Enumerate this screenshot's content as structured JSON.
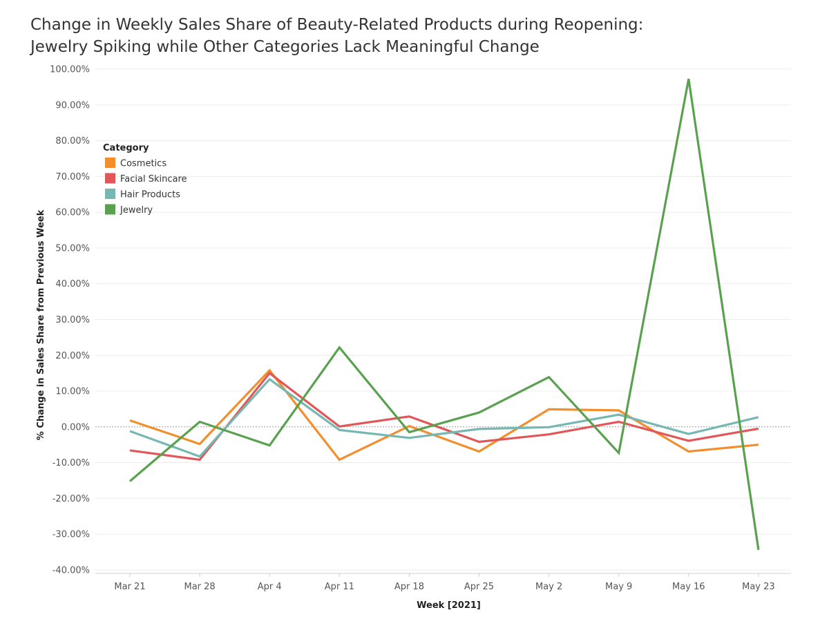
{
  "title_lines": [
    "Change in Weekly Sales Share of Beauty-Related Products during Reopening:",
    "Jewelry Spiking while Other Categories Lack Meaningful Change"
  ],
  "chart_data": {
    "type": "line",
    "xlabel": "Week [2021]",
    "ylabel": "% Change in Sales Share from Previous Week",
    "categories": [
      "Mar 21",
      "Mar 28",
      "Apr 4",
      "Apr 11",
      "Apr 18",
      "Apr 25",
      "May 2",
      "May 9",
      "May 16",
      "May 23"
    ],
    "ylim": [
      -41,
      101
    ],
    "yticks": [
      -40,
      -30,
      -20,
      -10,
      0,
      10,
      20,
      30,
      40,
      50,
      60,
      70,
      80,
      90,
      100
    ],
    "ytick_labels": [
      "-40.00%",
      "-30.00%",
      "-20.00%",
      "-10.00%",
      "0.00%",
      "10.00%",
      "20.00%",
      "30.00%",
      "40.00%",
      "50.00%",
      "60.00%",
      "70.00%",
      "80.00%",
      "90.00%",
      "100.00%"
    ],
    "grid": true,
    "zero_line": "dotted",
    "legend": {
      "title": "Category",
      "position": "top-left"
    },
    "series": [
      {
        "name": "Cosmetics",
        "color": "#F28E2B",
        "values": [
          1.8,
          -4.8,
          15.8,
          -9.2,
          0.2,
          -6.9,
          4.9,
          4.6,
          -6.9,
          -5.0
        ]
      },
      {
        "name": "Facial Skincare",
        "color": "#E15759",
        "values": [
          -6.6,
          -9.2,
          15.0,
          0.1,
          2.9,
          -4.2,
          -2.1,
          1.4,
          -3.9,
          -0.5
        ]
      },
      {
        "name": "Hair Products",
        "color": "#76B7B2",
        "values": [
          -1.2,
          -8.3,
          13.3,
          -0.9,
          -3.1,
          -0.6,
          -0.1,
          3.4,
          -2.0,
          2.7
        ]
      },
      {
        "name": "Jewelry",
        "color": "#59A14F",
        "values": [
          -15.2,
          1.4,
          -5.2,
          22.2,
          -1.5,
          4.0,
          13.9,
          -7.3,
          97.3,
          -34.4
        ]
      }
    ]
  }
}
